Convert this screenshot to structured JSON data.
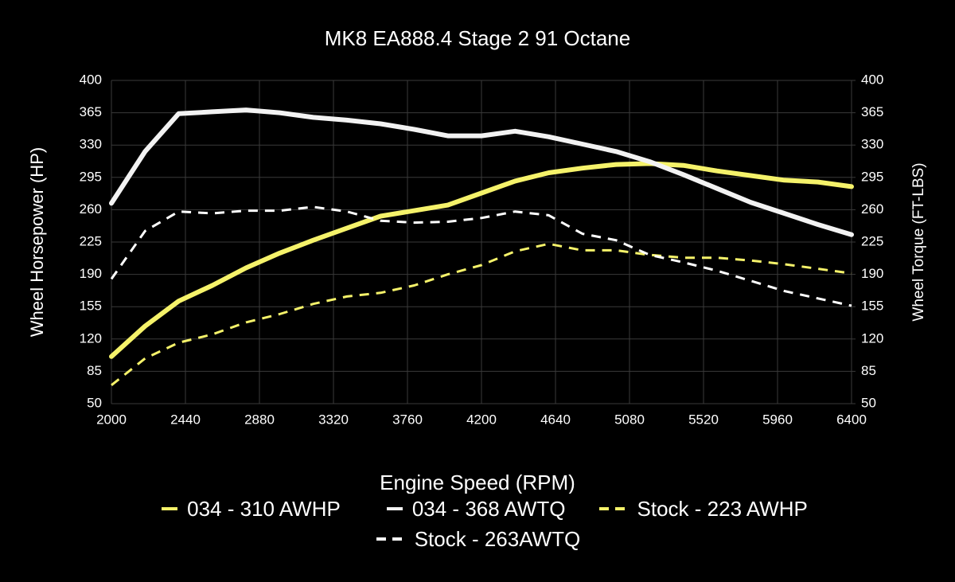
{
  "chart_data": {
    "type": "line",
    "title": "MK8 EA888.4 Stage 2 91 Octane",
    "x_label": "Engine Speed (RPM)",
    "y_label": "Wheel Horsepower (HP)",
    "y2_label": "Wheel Torque (FT-LBS)",
    "x": [
      2000,
      2200,
      2400,
      2600,
      2800,
      3000,
      3200,
      3400,
      3600,
      3800,
      4000,
      4200,
      4400,
      4600,
      4800,
      5000,
      5200,
      5400,
      5600,
      5800,
      6000,
      6200,
      6400
    ],
    "xlim": [
      2000,
      6400
    ],
    "xticks": [
      2000,
      2440,
      2880,
      3320,
      3760,
      4200,
      4640,
      5080,
      5520,
      5960,
      6400
    ],
    "ylim": [
      50,
      400
    ],
    "yticks": [
      50,
      85,
      120,
      155,
      190,
      225,
      260,
      295,
      330,
      365,
      400
    ],
    "y2lim": [
      50,
      400
    ],
    "y2ticks": [
      50,
      85,
      120,
      155,
      190,
      225,
      260,
      295,
      330,
      365,
      400
    ],
    "grid": true,
    "series": [
      {
        "name": "034 - 310 AWHP",
        "color": "#f5f26a",
        "line_style": "solid",
        "line_width": 6,
        "values": [
          101,
          134,
          161,
          178,
          197,
          213,
          227,
          240,
          253,
          259,
          265,
          278,
          291,
          300,
          305,
          309,
          310,
          308,
          302,
          297,
          292,
          290,
          285
        ]
      },
      {
        "name": "034 - 368 AWTQ",
        "color": "#f2f2f2",
        "line_style": "solid",
        "line_width": 6,
        "axis": "y2",
        "values": [
          267,
          323,
          364,
          366,
          368,
          365,
          360,
          357,
          353,
          347,
          340,
          340,
          345,
          339,
          331,
          323,
          312,
          298,
          283,
          268,
          256,
          244,
          233
        ]
      },
      {
        "name": "Stock - 223 AWHP",
        "color": "#f5f26a",
        "line_style": "dashed",
        "line_width": 3,
        "values": [
          70,
          99,
          116,
          125,
          138,
          147,
          158,
          166,
          170,
          178,
          190,
          200,
          215,
          223,
          216,
          216,
          211,
          208,
          208,
          205,
          201,
          196,
          191
        ]
      },
      {
        "name": "Stock - 263AWTQ",
        "color": "#ffffff",
        "line_style": "dashed",
        "line_width": 3,
        "axis": "y2",
        "values": [
          185,
          237,
          258,
          256,
          259,
          259,
          263,
          258,
          248,
          246,
          247,
          251,
          258,
          254,
          234,
          227,
          211,
          203,
          194,
          183,
          172,
          164,
          156
        ]
      }
    ]
  }
}
